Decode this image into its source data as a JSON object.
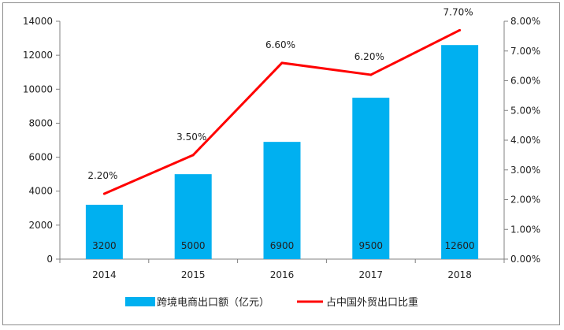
{
  "chart_data": {
    "type": "bar",
    "categories": [
      "2014",
      "2015",
      "2016",
      "2017",
      "2018"
    ],
    "series": [
      {
        "name": "跨境电商出口额（亿元）",
        "kind": "bar",
        "axis": "left",
        "color": "#00b0f0",
        "values": [
          3200,
          5000,
          6900,
          9500,
          12600
        ],
        "labels": [
          "3200",
          "5000",
          "6900",
          "9500",
          "12600"
        ]
      },
      {
        "name": "占中国外贸出口比重",
        "kind": "line",
        "axis": "right",
        "color": "#ff0000",
        "values": [
          2.2,
          3.5,
          6.6,
          6.2,
          7.7
        ],
        "labels": [
          "2.20%",
          "3.50%",
          "6.60%",
          "6.20%",
          "7.70%"
        ]
      }
    ],
    "y_left": {
      "ylim": [
        0,
        14000
      ],
      "ticks": [
        "0",
        "2000",
        "4000",
        "6000",
        "8000",
        "10000",
        "12000",
        "14000"
      ]
    },
    "y_right": {
      "ylim": [
        0,
        8
      ],
      "ticks": [
        "0.00%",
        "1.00%",
        "2.00%",
        "3.00%",
        "4.00%",
        "5.00%",
        "6.00%",
        "7.00%",
        "8.00%"
      ]
    },
    "legend": "bottom",
    "grid": false
  }
}
